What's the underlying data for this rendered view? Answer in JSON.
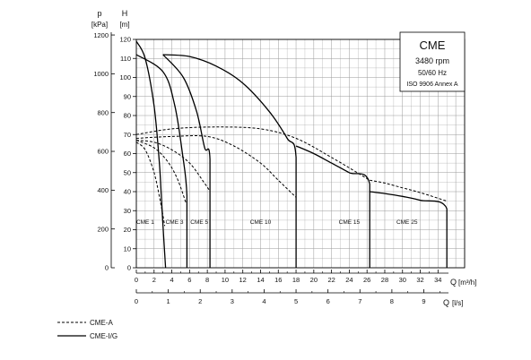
{
  "chart_data": {
    "type": "line",
    "title": "CME",
    "info_box": [
      "CME",
      "3480 rpm",
      "50/60 Hz",
      "ISO 9906 Annex A"
    ],
    "x_axis_primary": {
      "label": "Q",
      "unit": "[m³/h]",
      "range": [
        0,
        37
      ],
      "ticks": [
        "0",
        "2",
        "4",
        "6",
        "8",
        "10",
        "12",
        "14",
        "16",
        "18",
        "20",
        "22",
        "24",
        "26",
        "28",
        "30",
        "32",
        "34"
      ]
    },
    "x_axis_secondary": {
      "label": "Q",
      "unit": "[l/s]",
      "ticks": [
        "0",
        "1",
        "2",
        "3",
        "4",
        "5",
        "6",
        "7",
        "8",
        "9"
      ]
    },
    "y_axis_head": {
      "label": "H",
      "unit": "[m]",
      "range": [
        0,
        120
      ],
      "ticks": [
        "0",
        "10",
        "20",
        "30",
        "40",
        "50",
        "60",
        "70",
        "80",
        "90",
        "100",
        "110",
        "120"
      ]
    },
    "y_axis_pressure": {
      "label": "p",
      "unit": "[kPa]",
      "ticks": [
        "0",
        "200",
        "400",
        "600",
        "800",
        "1000",
        "1200"
      ]
    },
    "grid": true,
    "legend": [
      {
        "name": "CME-A",
        "style": "dashed"
      },
      {
        "name": "CME-I/G",
        "style": "solid"
      }
    ],
    "ranges": [
      {
        "name": "CME 1",
        "q_max": 3.3,
        "label_q": 1.0
      },
      {
        "name": "CME 3",
        "q_max": 5.7,
        "label_q": 4.3
      },
      {
        "name": "CME 5",
        "q_max": 8.3,
        "label_q": 7.1
      },
      {
        "name": "CME 10",
        "q_max": 18.0,
        "label_q": 14.0
      },
      {
        "name": "CME 15",
        "q_max": 26.3,
        "label_q": 24.0
      },
      {
        "name": "CME 25",
        "q_max": 35.0,
        "label_q": 30.5
      }
    ],
    "series": [
      {
        "name": "CME 1 (I/G)",
        "style": "solid",
        "x": [
          0,
          1,
          2,
          2.6,
          2.9,
          3.3
        ],
        "y": [
          119,
          110,
          85,
          55,
          30,
          0
        ]
      },
      {
        "name": "CME 3 (I/G)",
        "style": "solid",
        "x": [
          0,
          3,
          4.3,
          5.2,
          5.7,
          5.7
        ],
        "y": [
          112,
          103,
          86,
          60,
          38,
          0
        ]
      },
      {
        "name": "CME 5 (I/G)",
        "style": "solid",
        "x": [
          3,
          5.3,
          6.8,
          7.7,
          8.3,
          8.3
        ],
        "y": [
          112,
          100,
          82,
          63,
          57,
          0
        ]
      },
      {
        "name": "CME 10 (I/G)",
        "style": "solid",
        "x": [
          3,
          6,
          9,
          12,
          15,
          17,
          18,
          18
        ],
        "y": [
          112,
          111,
          106,
          97,
          82,
          68,
          58,
          0
        ]
      },
      {
        "name": "CME 15 (I/G)",
        "style": "solid",
        "x": [
          18,
          20,
          22,
          24,
          26.3,
          26.3
        ],
        "y": [
          64,
          60,
          55,
          50,
          44,
          0
        ]
      },
      {
        "name": "CME 25 (I/G)",
        "style": "solid",
        "x": [
          26.3,
          28,
          30,
          32,
          35,
          35
        ],
        "y": [
          40,
          39,
          37.5,
          35.5,
          31,
          0
        ]
      },
      {
        "name": "CME 1 (A)",
        "style": "dashed",
        "x": [
          0,
          1,
          2,
          2.7,
          3.2
        ],
        "y": [
          66,
          62,
          50,
          35,
          22
        ]
      },
      {
        "name": "CME 3 (A)",
        "style": "dashed",
        "x": [
          0,
          2,
          3.5,
          4.6,
          5.6
        ],
        "y": [
          67,
          63,
          56,
          47,
          34
        ]
      },
      {
        "name": "CME 5 (A)",
        "style": "dashed",
        "x": [
          0,
          2,
          4,
          6,
          7.6,
          8.2
        ],
        "y": [
          67,
          66,
          62,
          55,
          45,
          41
        ]
      },
      {
        "name": "CME 10 (A)",
        "style": "dashed",
        "x": [
          0,
          4,
          8,
          11,
          14,
          16,
          18
        ],
        "y": [
          68,
          69,
          69,
          64,
          55,
          46,
          37
        ]
      },
      {
        "name": "CME 15 (A)",
        "style": "dashed",
        "x": [
          0,
          4,
          9,
          14,
          18,
          22,
          26.3
        ],
        "y": [
          70,
          73,
          74,
          73,
          68,
          58,
          46
        ]
      },
      {
        "name": "CME 25 (A)",
        "style": "dashed",
        "x": [
          26.3,
          28,
          30,
          32,
          35
        ],
        "y": [
          46,
          44.5,
          42,
          39.5,
          35
        ]
      }
    ]
  }
}
